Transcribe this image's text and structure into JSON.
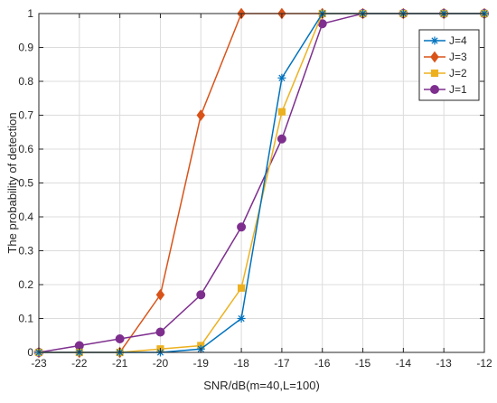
{
  "chart_data": {
    "type": "line",
    "title": "",
    "xlabel": "SNR/dB(m=40,L=100)",
    "ylabel": "The probability of detection",
    "xlim": [
      -23,
      -12
    ],
    "ylim": [
      0,
      1
    ],
    "grid": true,
    "legend_position": "top-right",
    "x_ticks": [
      -23,
      -22,
      -21,
      -20,
      -19,
      -18,
      -17,
      -16,
      -15,
      -14,
      -13,
      -12
    ],
    "y_ticks": [
      0,
      0.1,
      0.2,
      0.3,
      0.4,
      0.5,
      0.6,
      0.7,
      0.8,
      0.9,
      1
    ],
    "x_tick_labels": [
      "-23",
      "-22",
      "-21",
      "-20",
      "-19",
      "-18",
      "-17",
      "-16",
      "-15",
      "-14",
      "-13",
      "-12"
    ],
    "y_tick_labels": [
      "0",
      "0.1",
      "0.2",
      "0.3",
      "0.4",
      "0.5",
      "0.6",
      "0.7",
      "0.8",
      "0.9",
      "1"
    ],
    "x": [
      -23,
      -22,
      -21,
      -20,
      -19,
      -18,
      -17,
      -16,
      -15,
      -14,
      -13,
      -12
    ],
    "series": [
      {
        "name": "J=4",
        "color": "#0072BD",
        "marker": "asterisk",
        "values": [
          0,
          0,
          0,
          0,
          0.01,
          0.1,
          0.81,
          1,
          1,
          1,
          1,
          1
        ]
      },
      {
        "name": "J=3",
        "color": "#D95319",
        "marker": "diamond",
        "values": [
          0,
          0,
          0,
          0.17,
          0.7,
          1,
          1,
          1,
          1,
          1,
          1,
          1
        ]
      },
      {
        "name": "J=2",
        "color": "#EDB120",
        "marker": "square",
        "values": [
          0,
          0,
          0,
          0.01,
          0.02,
          0.19,
          0.71,
          1,
          1,
          1,
          1,
          1
        ]
      },
      {
        "name": "J=1",
        "color": "#7E2F8E",
        "marker": "circle",
        "values": [
          0,
          0.02,
          0.04,
          0.06,
          0.17,
          0.37,
          0.63,
          0.97,
          1,
          1,
          1,
          1
        ]
      }
    ]
  }
}
